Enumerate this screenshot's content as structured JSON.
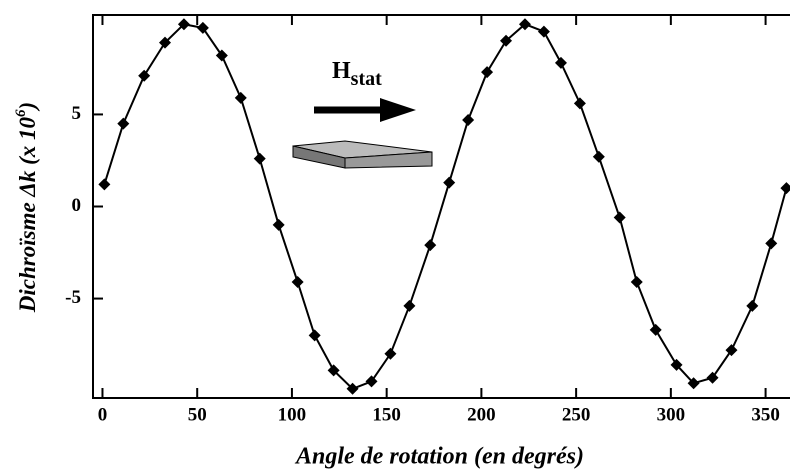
{
  "chart_data": {
    "type": "line",
    "xlabel": "Angle de rotation  (en degrés)",
    "ylabel": "Dichroïsme Δk  (x 10",
    "ylabel_sup": "6",
    "ylabel_end": ")",
    "annotation": "H",
    "annotation_sub": "stat",
    "x": [
      1,
      11,
      22,
      33,
      43,
      53,
      63,
      73,
      83,
      93,
      103,
      112,
      122,
      132,
      142,
      152,
      162,
      173,
      183,
      193,
      203,
      213,
      223,
      233,
      242,
      252,
      262,
      273,
      282,
      292,
      303,
      312,
      322,
      332,
      343,
      353,
      361
    ],
    "series": [
      {
        "color": "#000000",
        "values": [
          1.2,
          4.5,
          7.1,
          8.9,
          9.9,
          9.7,
          8.2,
          5.9,
          2.6,
          -1,
          -4.1,
          -7,
          -8.9,
          -9.9,
          -9.5,
          -8,
          -5.4,
          -2.1,
          1.3,
          4.7,
          7.3,
          9,
          9.9,
          9.5,
          7.8,
          5.6,
          2.7,
          -0.6,
          -4.1,
          -6.7,
          -8.6,
          -9.6,
          -9.3,
          -7.8,
          -5.4,
          -2,
          1
        ]
      }
    ],
    "xlim": [
      -5,
      365
    ],
    "ylim": [
      -10.4,
      10.4
    ],
    "xticks": [
      0,
      50,
      100,
      150,
      200,
      250,
      300,
      350
    ],
    "yticks": [
      -5,
      0,
      5
    ]
  }
}
